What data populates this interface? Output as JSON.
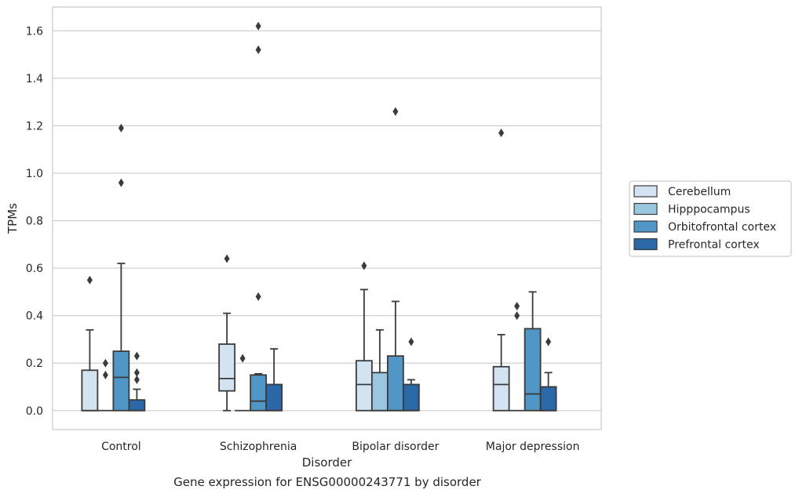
{
  "chart_data": {
    "type": "box",
    "title": "",
    "caption": "Gene expression for ENSG00000243771 by disorder",
    "xlabel": "Disorder",
    "ylabel": "TPMs",
    "ylim": [
      -0.08,
      1.7
    ],
    "yticks": [
      0.0,
      0.2,
      0.4,
      0.6,
      0.8,
      1.0,
      1.2,
      1.4,
      1.6
    ],
    "grid": true,
    "legend_position": "right",
    "categories": [
      "Control",
      "Schizophrenia",
      "Bipolar disorder",
      "Major depression"
    ],
    "series": [
      {
        "name": "Cerebellum",
        "color": "#d4e3f2",
        "boxes": [
          {
            "q1": 0.0,
            "median": 0.0,
            "q3": 0.17,
            "whisker_low": 0.0,
            "whisker_high": 0.34,
            "outliers": [
              0.55
            ]
          },
          {
            "q1": 0.083,
            "median": 0.135,
            "q3": 0.28,
            "whisker_low": 0.0,
            "whisker_high": 0.41,
            "outliers": [
              0.64
            ]
          },
          {
            "q1": 0.0,
            "median": 0.11,
            "q3": 0.21,
            "whisker_low": 0.0,
            "whisker_high": 0.51,
            "outliers": [
              0.61
            ]
          },
          {
            "q1": 0.0,
            "median": 0.11,
            "q3": 0.185,
            "whisker_low": 0.0,
            "whisker_high": 0.32,
            "outliers": [
              1.17
            ]
          }
        ]
      },
      {
        "name": "Hipppocampus",
        "color": "#9ac6e0",
        "boxes": [
          {
            "q1": 0.0,
            "median": 0.0,
            "q3": 0.0,
            "whisker_low": 0.0,
            "whisker_high": 0.0,
            "outliers": [
              0.15,
              0.2
            ]
          },
          {
            "q1": 0.0,
            "median": 0.0,
            "q3": 0.0,
            "whisker_low": 0.0,
            "whisker_high": 0.0,
            "outliers": [
              0.22
            ]
          },
          {
            "q1": 0.0,
            "median": 0.0,
            "q3": 0.16,
            "whisker_low": 0.0,
            "whisker_high": 0.34,
            "outliers": []
          },
          {
            "q1": 0.0,
            "median": 0.0,
            "q3": 0.0,
            "whisker_low": 0.0,
            "whisker_high": 0.0,
            "outliers": [
              0.4,
              0.44
            ]
          }
        ]
      },
      {
        "name": "Orbitofrontal cortex",
        "color": "#5096c6",
        "boxes": [
          {
            "q1": 0.0,
            "median": 0.14,
            "q3": 0.25,
            "whisker_low": 0.0,
            "whisker_high": 0.62,
            "outliers": [
              0.96,
              1.19
            ]
          },
          {
            "q1": 0.0,
            "median": 0.04,
            "q3": 0.15,
            "whisker_low": 0.0,
            "whisker_high": 0.155,
            "outliers": [
              0.48,
              1.52,
              1.62
            ]
          },
          {
            "q1": 0.0,
            "median": 0.0,
            "q3": 0.23,
            "whisker_low": 0.0,
            "whisker_high": 0.46,
            "outliers": [
              1.26
            ]
          },
          {
            "q1": 0.0,
            "median": 0.07,
            "q3": 0.345,
            "whisker_low": 0.0,
            "whisker_high": 0.5,
            "outliers": []
          }
        ]
      },
      {
        "name": "Prefrontal cortex",
        "color": "#2a68a8",
        "boxes": [
          {
            "q1": 0.0,
            "median": 0.0,
            "q3": 0.045,
            "whisker_low": 0.0,
            "whisker_high": 0.09,
            "outliers": [
              0.13,
              0.16,
              0.23
            ]
          },
          {
            "q1": 0.0,
            "median": 0.0,
            "q3": 0.11,
            "whisker_low": 0.0,
            "whisker_high": 0.26,
            "outliers": []
          },
          {
            "q1": 0.0,
            "median": 0.0,
            "q3": 0.11,
            "whisker_low": 0.0,
            "whisker_high": 0.13,
            "outliers": [
              0.29
            ]
          },
          {
            "q1": 0.0,
            "median": 0.0,
            "q3": 0.1,
            "whisker_low": 0.0,
            "whisker_high": 0.16,
            "outliers": [
              0.29
            ]
          }
        ]
      }
    ]
  }
}
